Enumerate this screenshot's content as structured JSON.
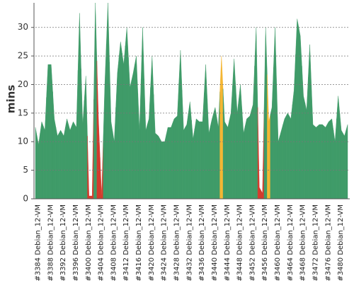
{
  "chart_data": {
    "type": "area",
    "y_label": "mins",
    "categories": [
      "#3384 Debian_12-VM",
      null,
      null,
      null,
      "#3388 Debian_12-VM",
      null,
      null,
      null,
      "#3392 Debian_12-VM",
      null,
      null,
      null,
      "#3396 Debian_12-VM",
      null,
      null,
      null,
      "#3400 Debian_12-VM",
      null,
      null,
      null,
      "#3404 Debian_12-VM",
      null,
      null,
      null,
      "#3408 Debian_12-VM",
      null,
      null,
      null,
      "#3412 Debian_12-VM",
      null,
      null,
      null,
      "#3416 Debian_12-VM",
      null,
      null,
      null,
      "#3420 Debian_12-VM",
      null,
      null,
      null,
      "#3424 Debian_12-VM",
      null,
      null,
      null,
      "#3428 Debian_12-VM",
      null,
      null,
      null,
      "#3432 Debian_12-VM",
      null,
      null,
      null,
      "#3436 Debian_12-VM",
      null,
      null,
      null,
      "#3440 Debian_12-VM",
      null,
      null,
      null,
      "#3444 Debian_12-VM",
      null,
      null,
      null,
      "#3448 Debian_12-VM",
      null,
      null,
      null,
      "#3452 Debian_12-VM",
      null,
      null,
      null,
      "#3456 Debian_12-VM",
      null,
      null,
      null,
      "#3460 Debian_12-VM",
      null,
      null,
      null,
      "#3464 Debian_12-VM",
      null,
      null,
      null,
      "#3468 Debian_12-VM",
      null,
      null,
      null,
      "#3472 Debian_12-VM",
      null,
      null,
      null,
      "#3476 Debian_12-VM",
      null,
      null,
      null,
      "#3480 Debian_12-VM",
      null,
      null,
      null
    ],
    "values": [
      12.5,
      9.5,
      13.5,
      12,
      23.5,
      23.5,
      14,
      11,
      12,
      11,
      14,
      12,
      13.5,
      12.5,
      32.5,
      13,
      21.5,
      0.5,
      0.5,
      34.3,
      14,
      0.5,
      20,
      34.3,
      13.5,
      10,
      22,
      27.5,
      23.5,
      30,
      19.5,
      22,
      25,
      12,
      30,
      12,
      14,
      25,
      11.5,
      11,
      10,
      10,
      12.5,
      12.5,
      14,
      14.5,
      26,
      12,
      13,
      17,
      10.5,
      14,
      13.5,
      13.5,
      23.5,
      11.5,
      14,
      16,
      12.5,
      25,
      13.5,
      12.5,
      15,
      24.5,
      15,
      20,
      11.5,
      14,
      14.5,
      16.5,
      30,
      2,
      1,
      30,
      13.5,
      16,
      30,
      10,
      12,
      14,
      15,
      14,
      19,
      31.5,
      28.5,
      18,
      15.5,
      27,
      13,
      12.5,
      13,
      13,
      12.5,
      13.5,
      14,
      10,
      18,
      12,
      11,
      13
    ],
    "colors": [
      "#3f9b68",
      "#3f9b68",
      "#3f9b68",
      "#3f9b68",
      "#3f9b68",
      "#3f9b68",
      "#3f9b68",
      "#3f9b68",
      "#3f9b68",
      "#3f9b68",
      "#3f9b68",
      "#3f9b68",
      "#3f9b68",
      "#3f9b68",
      "#3f9b68",
      "#3f9b68",
      "#3f9b68",
      "#d33b2d",
      "#d33b2d",
      "#3f9b68",
      "#d33b2d",
      "#d33b2d",
      "#3f9b68",
      "#3f9b68",
      "#3f9b68",
      "#3f9b68",
      "#3f9b68",
      "#3f9b68",
      "#3f9b68",
      "#3f9b68",
      "#3f9b68",
      "#3f9b68",
      "#3f9b68",
      "#3f9b68",
      "#3f9b68",
      "#3f9b68",
      "#3f9b68",
      "#3f9b68",
      "#3f9b68",
      "#3f9b68",
      "#3f9b68",
      "#3f9b68",
      "#3f9b68",
      "#3f9b68",
      "#3f9b68",
      "#3f9b68",
      "#3f9b68",
      "#3f9b68",
      "#3f9b68",
      "#3f9b68",
      "#3f9b68",
      "#3f9b68",
      "#3f9b68",
      "#3f9b68",
      "#3f9b68",
      "#3f9b68",
      "#3f9b68",
      "#3f9b68",
      "#3f9b68",
      "#f4b633",
      "#3f9b68",
      "#3f9b68",
      "#3f9b68",
      "#3f9b68",
      "#3f9b68",
      "#3f9b68",
      "#3f9b68",
      "#3f9b68",
      "#3f9b68",
      "#3f9b68",
      "#3f9b68",
      "#d33b2d",
      "#d33b2d",
      "#3f9b68",
      "#f4b633",
      "#3f9b68",
      "#3f9b68",
      "#3f9b68",
      "#3f9b68",
      "#3f9b68",
      "#3f9b68",
      "#3f9b68",
      "#3f9b68",
      "#3f9b68",
      "#3f9b68",
      "#3f9b68",
      "#3f9b68",
      "#3f9b68",
      "#3f9b68",
      "#3f9b68",
      "#3f9b68",
      "#3f9b68",
      "#3f9b68",
      "#3f9b68",
      "#3f9b68",
      "#3f9b68",
      "#3f9b68",
      "#3f9b68",
      "#3f9b68",
      "#3f9b68"
    ],
    "ylim": [
      0,
      34.3
    ],
    "yticks": [
      0,
      5,
      10,
      15,
      20,
      25,
      30
    ],
    "grid": true
  }
}
